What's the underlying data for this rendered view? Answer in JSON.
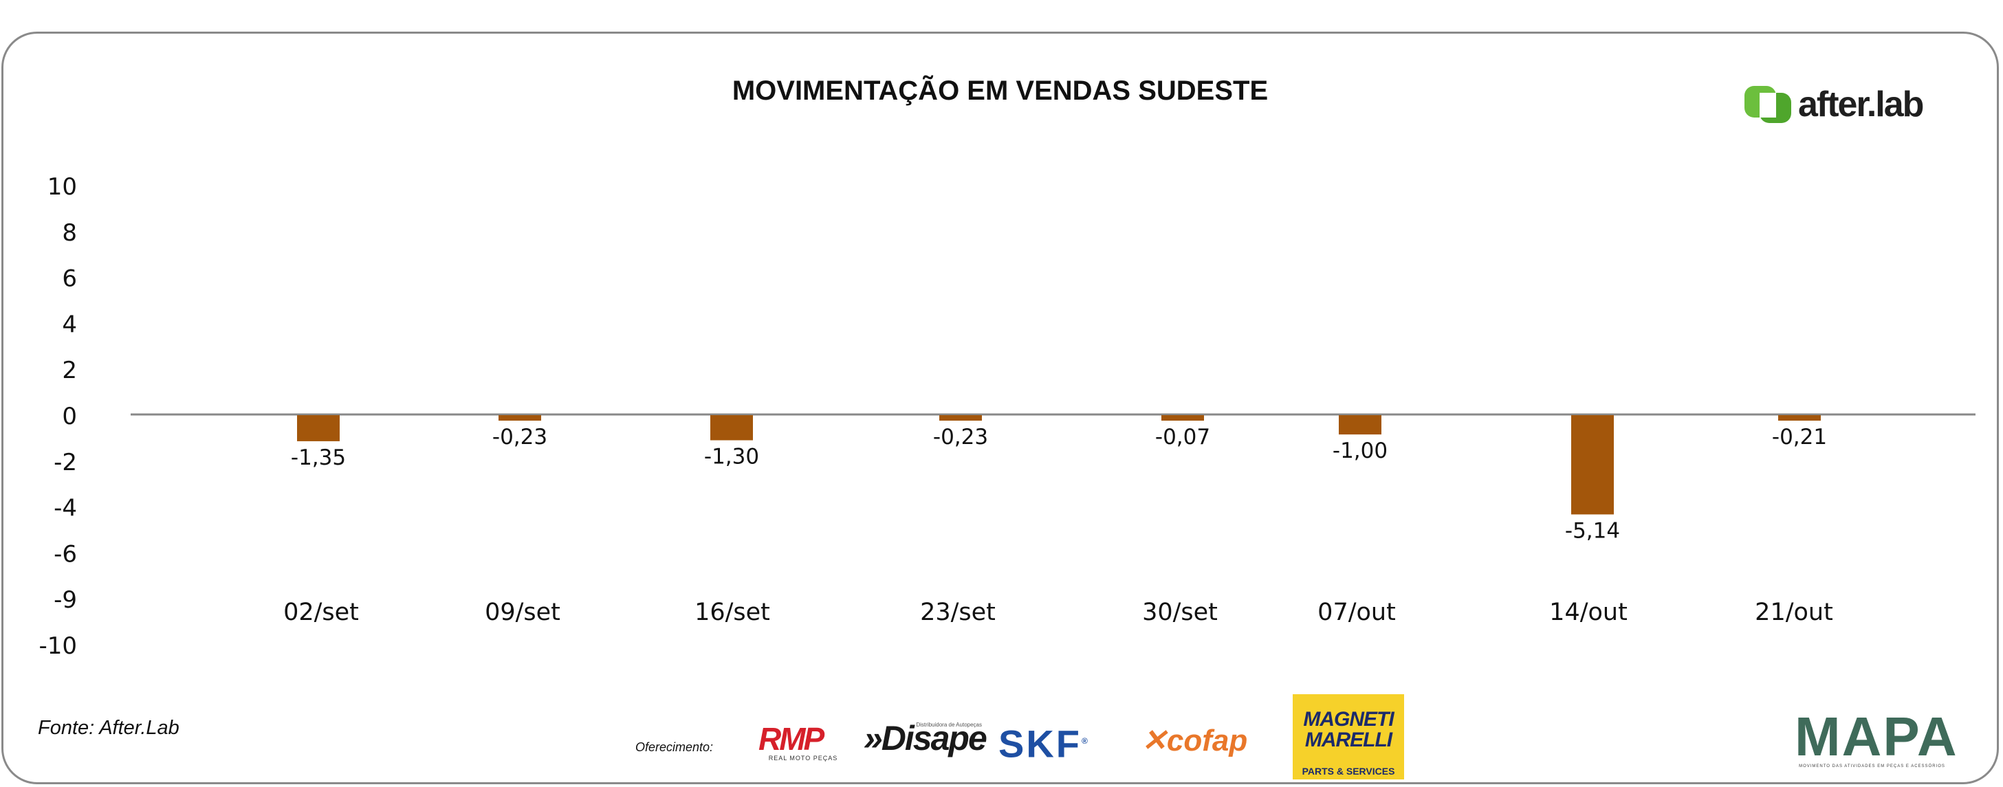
{
  "brand": {
    "name": "after.lab",
    "accent": "#6cbf3d"
  },
  "footer": {
    "source": "Fonte: After.Lab",
    "sponsor_label": "Oferecimento:",
    "sponsors": {
      "rmp": "RMP",
      "rmp_tag": "REAL MOTO PEÇAS",
      "disape": "»Disape",
      "disape_tag": "Distribuidora de Autopeças",
      "skf": "SKF",
      "cofap": "cofap",
      "magneti_line1": "MAGNETI MARELLI",
      "magneti_line2": "PARTS & SERVICES",
      "mapa": "MAPA",
      "mapa_tag": "MOVIMENTO DAS ATIVIDADES EM PEÇAS E ACESSÓRIOS"
    }
  },
  "colors": {
    "bar": "#a3560b",
    "zero_line": "#888888"
  },
  "chart_data": {
    "type": "bar",
    "title": "MOVIMENTAÇÃO EM VENDAS SUDESTE",
    "categories": [
      "02/set",
      "09/set",
      "16/set",
      "23/set",
      "30/set",
      "07/out",
      "14/out",
      "21/out"
    ],
    "values": [
      -1.35,
      -0.23,
      -1.3,
      -0.23,
      -0.07,
      -1.0,
      -5.14,
      -0.21
    ],
    "value_labels": [
      "-1,35",
      "-0,23",
      "-1,30",
      "-0,23",
      "-0,07",
      "-1,00",
      "-5,14",
      "-0,21"
    ],
    "y_tick_labels": [
      "10",
      "8",
      "6",
      "4",
      "2",
      "0",
      "-2",
      "-4",
      "-6",
      "-9",
      "-10"
    ],
    "ylim": [
      -10,
      10
    ],
    "grid": false,
    "legend": "none"
  }
}
